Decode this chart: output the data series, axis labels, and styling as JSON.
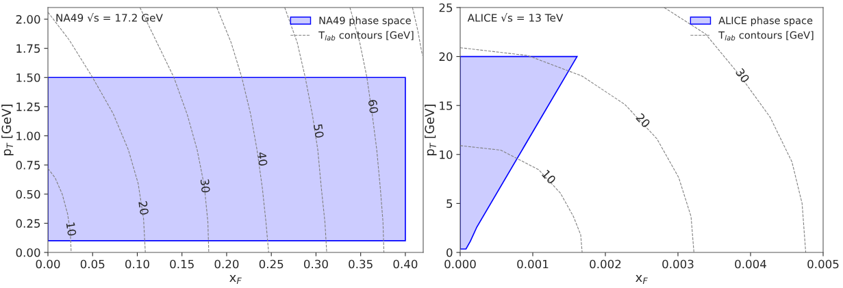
{
  "chart_data": [
    {
      "type": "area",
      "title": "NA49 √s = 17.2 GeV",
      "xlabel": "x$_{F}$",
      "ylabel": "p$_{T}$ [GeV]",
      "legend": "top right",
      "xlim": [
        0,
        0.42
      ],
      "ylim": [
        0,
        2.1
      ],
      "xticks": [
        {
          "value": 0,
          "label": "0.00"
        },
        0.05,
        {
          "value": 0.1,
          "label": "0.10"
        },
        0.15,
        {
          "value": 0.2,
          "label": "0.20"
        },
        0.25,
        {
          "value": 0.3,
          "label": "0.30"
        },
        0.35,
        {
          "value": 0.4,
          "label": "0.40"
        }
      ],
      "yticks": [
        {
          "value": 0,
          "label": "0.00"
        },
        0.25,
        {
          "value": 0.5,
          "label": "0.50"
        },
        0.75,
        {
          "value": 1,
          "label": "1.00"
        },
        1.25,
        {
          "value": 1.5,
          "label": "1.50"
        },
        1.75,
        {
          "value": 2,
          "label": "2.00"
        }
      ],
      "series": [
        {
          "name": "NA49 phase space",
          "color": "#0000ff",
          "x": [
            0,
            0.4,
            0.4,
            0
          ],
          "values": [
            0.1,
            0.1,
            1.5,
            1.5
          ]
        },
        {
          "type": "line",
          "name": "T$_{lab}$ contours [GeV]",
          "color": "#808080",
          "line_style": "dashed",
          "x": [
            0,
            0.008,
            0.016,
            0.022,
            0.025,
            0.026
          ],
          "values": [
            0.72,
            0.64,
            0.5,
            0.33,
            0.18,
            0
          ]
        },
        {
          "type": "line",
          "color": "#808080",
          "line_style": "dashed",
          "x": [
            0,
            0.024,
            0.05,
            0.073,
            0.09,
            0.101,
            0.107,
            0.109
          ],
          "values": [
            2.06,
            1.82,
            1.5,
            1.19,
            0.88,
            0.59,
            0.29,
            0
          ]
        },
        {
          "type": "line",
          "color": "#808080",
          "line_style": "dashed",
          "x": [
            0.103,
            0.122,
            0.141,
            0.156,
            0.167,
            0.175,
            0.179,
            0.18
          ],
          "values": [
            2.1,
            1.8,
            1.5,
            1.18,
            0.88,
            0.57,
            0.26,
            0
          ]
        },
        {
          "type": "line",
          "color": "#808080",
          "line_style": "dashed",
          "x": [
            0.189,
            0.205,
            0.217,
            0.227,
            0.234,
            0.24,
            0.244,
            0.247
          ],
          "values": [
            2.1,
            1.8,
            1.5,
            1.18,
            0.88,
            0.55,
            0.26,
            0
          ]
        },
        {
          "type": "line",
          "color": "#808080",
          "line_style": "dashed",
          "x": [
            0.265,
            0.279,
            0.288,
            0.296,
            0.302,
            0.306,
            0.31,
            0.312
          ],
          "values": [
            2.1,
            1.8,
            1.5,
            1.18,
            0.88,
            0.55,
            0.26,
            0
          ]
        },
        {
          "type": "line",
          "color": "#808080",
          "line_style": "dashed",
          "x": [
            0.338,
            0.349,
            0.357,
            0.363,
            0.368,
            0.372,
            0.375,
            0.376
          ],
          "values": [
            2.1,
            1.8,
            1.5,
            1.18,
            0.88,
            0.55,
            0.26,
            0
          ]
        },
        {
          "type": "line",
          "color": "#808080",
          "line_style": "dashed",
          "x": [
            0.408,
            0.414,
            0.419
          ],
          "values": [
            2.1,
            1.9,
            1.69
          ]
        }
      ],
      "annotations": [
        {
          "text": "10",
          "x": 0.025,
          "y": 0.2
        },
        {
          "text": "20",
          "x": 0.106,
          "y": 0.38
        },
        {
          "text": "30",
          "x": 0.175,
          "y": 0.57
        },
        {
          "text": "40",
          "x": 0.239,
          "y": 0.8
        },
        {
          "text": "50",
          "x": 0.302,
          "y": 1.04
        },
        {
          "text": "60",
          "x": 0.363,
          "y": 1.25
        }
      ]
    },
    {
      "type": "area",
      "title": "ALICE √s = 13 TeV",
      "xlabel": "x$_{F}$",
      "ylabel": "p$_{T}$ [GeV]",
      "legend": "top right",
      "xlim": [
        0,
        0.005
      ],
      "ylim": [
        0,
        25
      ],
      "xticks": [
        {
          "value": 0,
          "label": "0.000"
        },
        0.001,
        0.002,
        0.003,
        0.004,
        0.005
      ],
      "yticks": [
        0,
        5,
        10,
        15,
        20,
        25
      ],
      "series": [
        {
          "name": "ALICE phase space",
          "color": "#0000ff",
          "x": [
            0,
            8e-05,
            0.00014,
            0.00023,
            0.00161,
            0
          ],
          "values": [
            0.35,
            0.35,
            1.14,
            2.6,
            20,
            20
          ]
        },
        {
          "type": "line",
          "name": "T$_{lab}$ contours [GeV]",
          "color": "#808080",
          "line_style": "dashed",
          "x": [
            0,
            0.00056,
            0.00108,
            0.00138,
            0.00156,
            0.00166,
            0.00168
          ],
          "values": [
            10.9,
            10.44,
            8.45,
            6.06,
            3.67,
            1.8,
            0
          ]
        },
        {
          "type": "line",
          "color": "#808080",
          "line_style": "dashed",
          "x": [
            0,
            0.00093,
            0.00168,
            0.00227,
            0.00271,
            0.00301,
            0.00318,
            0.00322
          ],
          "values": [
            20.9,
            20.1,
            18.0,
            15.1,
            11.6,
            7.65,
            3.67,
            0
          ]
        },
        {
          "type": "line",
          "color": "#808080",
          "line_style": "dashed",
          "x": [
            0.00281,
            0.00338,
            0.00386,
            0.00427,
            0.00457,
            0.00471,
            0.00476
          ],
          "values": [
            25,
            22.3,
            18.0,
            13.8,
            9.25,
            5.0,
            0
          ]
        }
      ],
      "annotations": [
        {
          "text": "10",
          "x": 0.00121,
          "y": 7.65
        },
        {
          "text": "20",
          "x": 0.00251,
          "y": 13.4
        },
        {
          "text": "30",
          "x": 0.00388,
          "y": 18.0
        }
      ]
    }
  ]
}
